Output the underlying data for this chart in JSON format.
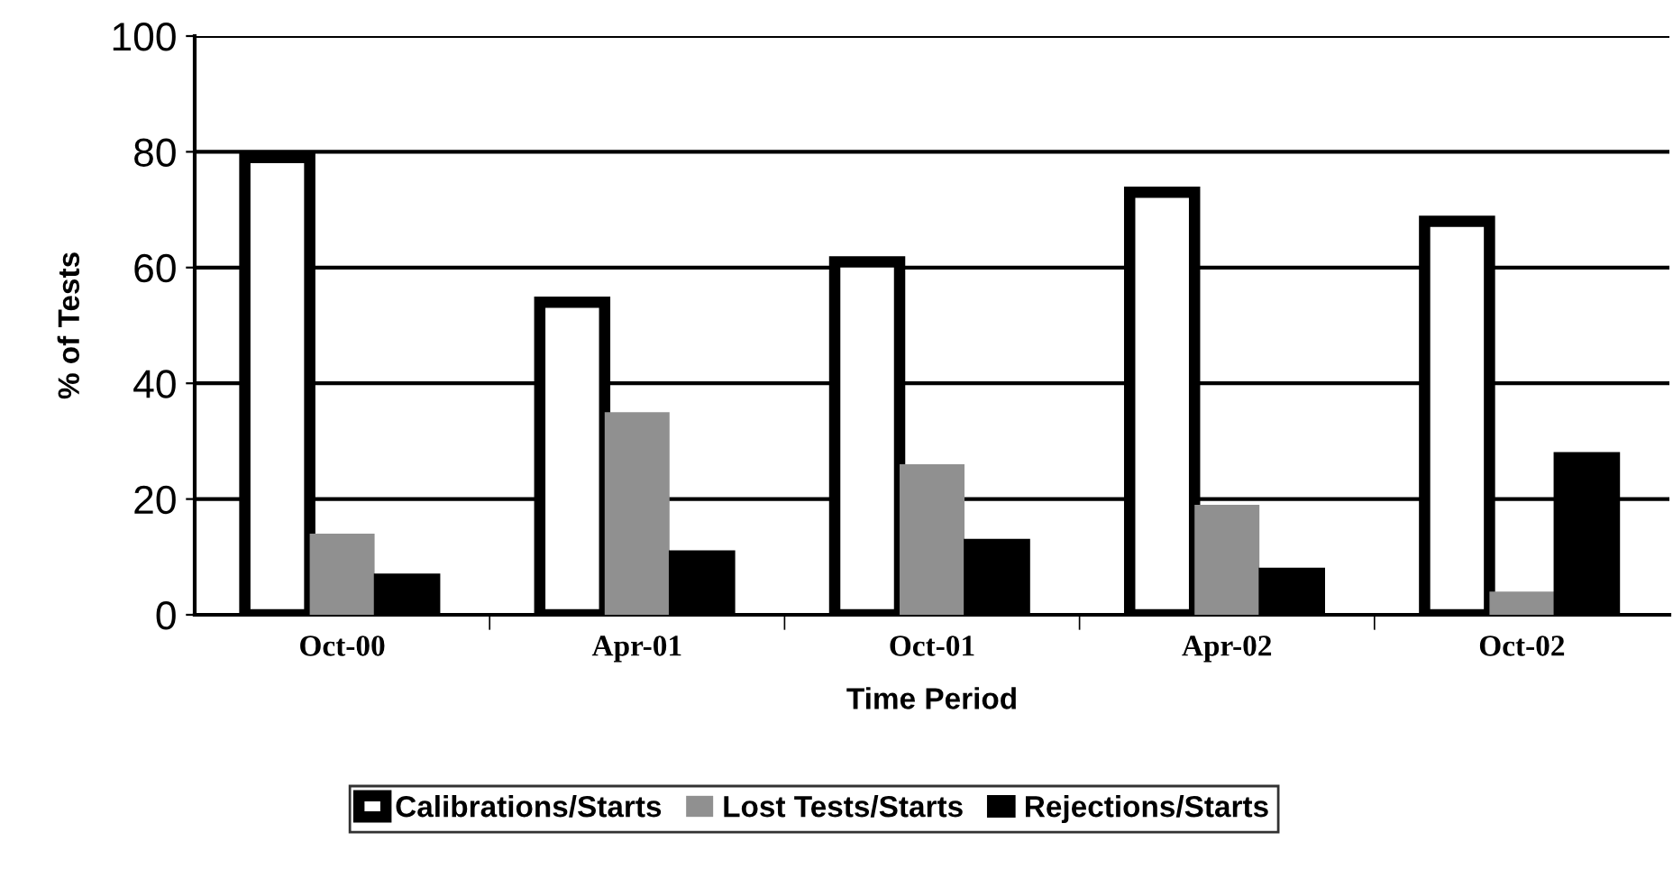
{
  "chart_data": {
    "type": "bar",
    "xlabel": "Time Period",
    "ylabel": "% of Tests",
    "categories": [
      "Oct-00",
      "Apr-01",
      "Oct-01",
      "Apr-02",
      "Oct-02"
    ],
    "series": [
      {
        "name": "Calibrations/Starts",
        "color": "#ffffff",
        "values": [
          79,
          54,
          61,
          73,
          68
        ]
      },
      {
        "name": "Lost Tests/Starts",
        "color": "#909090",
        "values": [
          14,
          35,
          26,
          19,
          4
        ]
      },
      {
        "name": "Rejections/Starts",
        "color": "#000000",
        "values": [
          7,
          11,
          13,
          8,
          28
        ]
      }
    ],
    "ylim": [
      0,
      100
    ],
    "yticks": [
      0,
      20,
      40,
      60,
      80,
      100
    ],
    "grid": "y",
    "legend": "bottom"
  }
}
